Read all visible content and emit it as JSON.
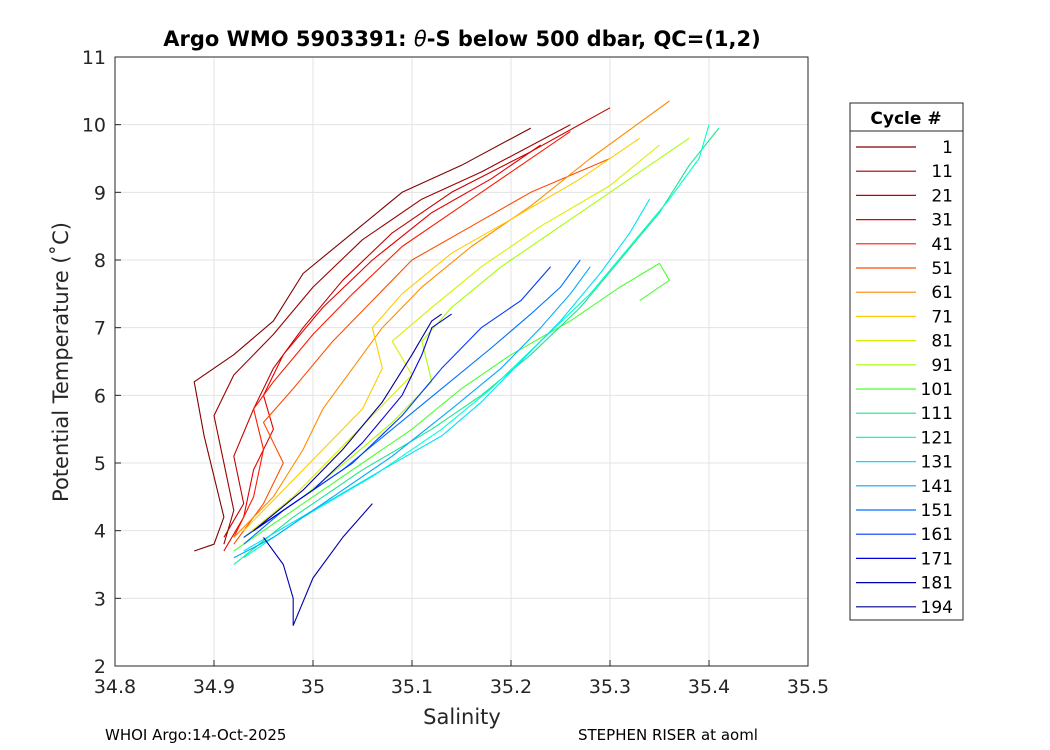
{
  "chart_data": {
    "type": "line",
    "title": "Argo WMO 5903391: θ-S below 500 dbar,  QC=(1,2)",
    "title_prefix": "Argo WMO 5903391: ",
    "title_theta": "θ",
    "title_suffix": "-S below 500 dbar,  QC=(1,2)",
    "xlabel": "Salinity",
    "ylabel": "Potential Temperature (˚C)",
    "xlim": [
      34.8,
      35.5
    ],
    "ylim": [
      2,
      11
    ],
    "xticks": [
      34.8,
      34.9,
      35.0,
      35.1,
      35.2,
      35.3,
      35.4,
      35.5
    ],
    "xtick_labels": [
      "34.8",
      "34.9",
      "35",
      "35.1",
      "35.2",
      "35.3",
      "35.4",
      "35.5"
    ],
    "yticks": [
      2,
      3,
      4,
      5,
      6,
      7,
      8,
      9,
      10,
      11
    ],
    "ytick_labels": [
      "2",
      "3",
      "4",
      "5",
      "6",
      "7",
      "8",
      "9",
      "10",
      "11"
    ],
    "grid": true,
    "legend": {
      "title": "Cycle #",
      "placement": "outside-right",
      "entries": [
        {
          "label": "1",
          "color": "#800000"
        },
        {
          "label": "11",
          "color": "#9b0000"
        },
        {
          "label": "21",
          "color": "#c10000"
        },
        {
          "label": "31",
          "color": "#e50000"
        },
        {
          "label": "41",
          "color": "#ff1a00"
        },
        {
          "label": "51",
          "color": "#ff4d00"
        },
        {
          "label": "61",
          "color": "#ff8c00"
        },
        {
          "label": "71",
          "color": "#ffcc00"
        },
        {
          "label": "81",
          "color": "#d9f000"
        },
        {
          "label": "91",
          "color": "#a6ff00"
        },
        {
          "label": "101",
          "color": "#4dff33"
        },
        {
          "label": "111",
          "color": "#1ae68c"
        },
        {
          "label": "121",
          "color": "#00ffd0"
        },
        {
          "label": "131",
          "color": "#00e0ff"
        },
        {
          "label": "141",
          "color": "#00a8ff"
        },
        {
          "label": "151",
          "color": "#0070ff"
        },
        {
          "label": "161",
          "color": "#0038ff"
        },
        {
          "label": "171",
          "color": "#0000e0"
        },
        {
          "label": "181",
          "color": "#0000b0"
        },
        {
          "label": "194",
          "color": "#000090"
        }
      ]
    },
    "series": [
      {
        "name": "1",
        "color": "#800000",
        "points": [
          [
            34.88,
            3.7
          ],
          [
            34.9,
            3.8
          ],
          [
            34.91,
            4.2
          ],
          [
            34.9,
            4.8
          ],
          [
            34.89,
            5.4
          ],
          [
            34.88,
            6.2
          ],
          [
            34.92,
            6.6
          ],
          [
            34.96,
            7.1
          ],
          [
            34.99,
            7.8
          ],
          [
            35.04,
            8.4
          ],
          [
            35.09,
            9.0
          ],
          [
            35.15,
            9.4
          ],
          [
            35.22,
            9.95
          ]
        ]
      },
      {
        "name": "11",
        "color": "#9b0000",
        "points": [
          [
            34.91,
            3.8
          ],
          [
            34.92,
            4.3
          ],
          [
            34.91,
            5.0
          ],
          [
            34.9,
            5.7
          ],
          [
            34.92,
            6.3
          ],
          [
            34.96,
            6.9
          ],
          [
            35.0,
            7.6
          ],
          [
            35.05,
            8.3
          ],
          [
            35.11,
            8.9
          ],
          [
            35.17,
            9.3
          ],
          [
            35.26,
            10.0
          ]
        ]
      },
      {
        "name": "21",
        "color": "#c10000",
        "points": [
          [
            34.91,
            3.9
          ],
          [
            34.93,
            4.4
          ],
          [
            34.92,
            5.1
          ],
          [
            34.94,
            5.8
          ],
          [
            34.96,
            6.4
          ],
          [
            34.99,
            7.0
          ],
          [
            35.03,
            7.7
          ],
          [
            35.08,
            8.4
          ],
          [
            35.14,
            9.0
          ],
          [
            35.22,
            9.6
          ],
          [
            35.3,
            10.25
          ]
        ]
      },
      {
        "name": "31",
        "color": "#e50000",
        "points": [
          [
            34.91,
            3.7
          ],
          [
            34.93,
            4.2
          ],
          [
            34.94,
            4.9
          ],
          [
            34.96,
            5.5
          ],
          [
            34.95,
            6.0
          ],
          [
            34.97,
            6.6
          ],
          [
            35.01,
            7.3
          ],
          [
            35.06,
            8.0
          ],
          [
            35.12,
            8.7
          ],
          [
            35.18,
            9.2
          ],
          [
            35.23,
            9.7
          ]
        ]
      },
      {
        "name": "41",
        "color": "#ff1a00",
        "points": [
          [
            34.92,
            3.9
          ],
          [
            34.94,
            4.5
          ],
          [
            34.95,
            5.2
          ],
          [
            34.94,
            5.8
          ],
          [
            34.96,
            6.2
          ],
          [
            35.0,
            6.9
          ],
          [
            35.04,
            7.5
          ],
          [
            35.09,
            8.2
          ],
          [
            35.15,
            8.8
          ],
          [
            35.21,
            9.4
          ],
          [
            35.26,
            9.9
          ]
        ]
      },
      {
        "name": "51",
        "color": "#ff4d00",
        "points": [
          [
            34.92,
            3.8
          ],
          [
            34.95,
            4.4
          ],
          [
            34.97,
            5.0
          ],
          [
            34.95,
            5.6
          ],
          [
            34.98,
            6.1
          ],
          [
            35.02,
            6.8
          ],
          [
            35.06,
            7.4
          ],
          [
            35.1,
            8.0
          ],
          [
            35.16,
            8.5
          ],
          [
            35.22,
            9.0
          ],
          [
            35.3,
            9.5
          ]
        ]
      },
      {
        "name": "61",
        "color": "#ff8c00",
        "points": [
          [
            34.92,
            3.9
          ],
          [
            34.96,
            4.5
          ],
          [
            34.99,
            5.2
          ],
          [
            35.01,
            5.8
          ],
          [
            35.04,
            6.4
          ],
          [
            35.07,
            7.0
          ],
          [
            35.11,
            7.6
          ],
          [
            35.16,
            8.2
          ],
          [
            35.22,
            8.8
          ],
          [
            35.28,
            9.5
          ],
          [
            35.36,
            10.35
          ]
        ]
      },
      {
        "name": "71",
        "color": "#ffcc00",
        "points": [
          [
            34.93,
            4.0
          ],
          [
            34.97,
            4.6
          ],
          [
            35.01,
            5.2
          ],
          [
            35.05,
            5.8
          ],
          [
            35.07,
            6.4
          ],
          [
            35.06,
            7.0
          ],
          [
            35.09,
            7.5
          ],
          [
            35.14,
            8.1
          ],
          [
            35.2,
            8.6
          ],
          [
            35.27,
            9.2
          ],
          [
            35.33,
            9.8
          ]
        ]
      },
      {
        "name": "81",
        "color": "#d9f000",
        "points": [
          [
            34.93,
            3.9
          ],
          [
            34.98,
            4.5
          ],
          [
            35.02,
            5.1
          ],
          [
            35.06,
            5.7
          ],
          [
            35.1,
            6.3
          ],
          [
            35.08,
            6.8
          ],
          [
            35.12,
            7.3
          ],
          [
            35.17,
            7.9
          ],
          [
            35.23,
            8.5
          ],
          [
            35.3,
            9.1
          ],
          [
            35.35,
            9.7
          ]
        ]
      },
      {
        "name": "91",
        "color": "#a6ff00",
        "points": [
          [
            34.93,
            3.9
          ],
          [
            34.99,
            4.5
          ],
          [
            35.04,
            5.1
          ],
          [
            35.08,
            5.6
          ],
          [
            35.12,
            6.2
          ],
          [
            35.11,
            6.8
          ],
          [
            35.14,
            7.3
          ],
          [
            35.19,
            7.9
          ],
          [
            35.25,
            8.5
          ],
          [
            35.32,
            9.2
          ],
          [
            35.38,
            9.8
          ]
        ]
      },
      {
        "name": "101",
        "color": "#4dff33",
        "points": [
          [
            34.92,
            3.7
          ],
          [
            34.99,
            4.4
          ],
          [
            35.05,
            5.0
          ],
          [
            35.1,
            5.5
          ],
          [
            35.15,
            6.1
          ],
          [
            35.2,
            6.6
          ],
          [
            35.26,
            7.1
          ],
          [
            35.31,
            7.6
          ],
          [
            35.35,
            7.95
          ],
          [
            35.36,
            7.7
          ],
          [
            35.33,
            7.4
          ]
        ]
      },
      {
        "name": "111",
        "color": "#1ae68c",
        "points": [
          [
            34.92,
            3.5
          ],
          [
            34.98,
            4.2
          ],
          [
            35.05,
            4.9
          ],
          [
            35.12,
            5.5
          ],
          [
            35.17,
            6.0
          ],
          [
            35.22,
            6.6
          ],
          [
            35.27,
            7.3
          ],
          [
            35.31,
            8.0
          ],
          [
            35.35,
            8.7
          ],
          [
            35.38,
            9.4
          ],
          [
            35.41,
            9.95
          ]
        ]
      },
      {
        "name": "121",
        "color": "#00ffd0",
        "points": [
          [
            34.93,
            3.6
          ],
          [
            34.99,
            4.2
          ],
          [
            35.06,
            4.8
          ],
          [
            35.13,
            5.5
          ],
          [
            35.18,
            6.1
          ],
          [
            35.23,
            6.8
          ],
          [
            35.28,
            7.5
          ],
          [
            35.32,
            8.2
          ],
          [
            35.36,
            8.9
          ],
          [
            35.39,
            9.5
          ],
          [
            35.4,
            10.0
          ]
        ]
      },
      {
        "name": "131",
        "color": "#00e0ff",
        "points": [
          [
            34.93,
            3.7
          ],
          [
            35.0,
            4.3
          ],
          [
            35.07,
            4.9
          ],
          [
            35.13,
            5.4
          ],
          [
            35.17,
            5.9
          ],
          [
            35.21,
            6.5
          ],
          [
            35.25,
            7.1
          ],
          [
            35.29,
            7.8
          ],
          [
            35.32,
            8.4
          ],
          [
            35.34,
            8.9
          ]
        ]
      },
      {
        "name": "141",
        "color": "#00a8ff",
        "points": [
          [
            34.92,
            3.6
          ],
          [
            34.96,
            3.9
          ],
          [
            35.02,
            4.5
          ],
          [
            35.08,
            5.1
          ],
          [
            35.14,
            5.8
          ],
          [
            35.19,
            6.4
          ],
          [
            35.23,
            7.0
          ],
          [
            35.26,
            7.5
          ],
          [
            35.28,
            7.9
          ]
        ]
      },
      {
        "name": "151",
        "color": "#0070ff",
        "points": [
          [
            34.93,
            3.8
          ],
          [
            34.97,
            4.3
          ],
          [
            35.03,
            4.9
          ],
          [
            35.08,
            5.5
          ],
          [
            35.13,
            6.1
          ],
          [
            35.18,
            6.7
          ],
          [
            35.22,
            7.2
          ],
          [
            35.25,
            7.6
          ],
          [
            35.27,
            8.0
          ]
        ]
      },
      {
        "name": "161",
        "color": "#0038ff",
        "points": [
          [
            34.93,
            3.9
          ],
          [
            34.98,
            4.4
          ],
          [
            35.04,
            5.0
          ],
          [
            35.09,
            5.7
          ],
          [
            35.13,
            6.4
          ],
          [
            35.17,
            7.0
          ],
          [
            35.21,
            7.4
          ],
          [
            35.24,
            7.9
          ]
        ]
      },
      {
        "name": "171",
        "color": "#0000e0",
        "points": [
          [
            34.94,
            4.0
          ],
          [
            35.0,
            4.6
          ],
          [
            35.05,
            5.3
          ],
          [
            35.09,
            6.0
          ],
          [
            35.11,
            6.6
          ],
          [
            35.12,
            7.0
          ],
          [
            35.14,
            7.2
          ]
        ]
      },
      {
        "name": "181",
        "color": "#0000b0",
        "points": [
          [
            34.95,
            3.9
          ],
          [
            34.97,
            3.5
          ],
          [
            34.98,
            3.0
          ],
          [
            34.98,
            2.6
          ],
          [
            35.0,
            3.3
          ],
          [
            35.03,
            3.9
          ],
          [
            35.06,
            4.4
          ]
        ]
      },
      {
        "name": "194",
        "color": "#000090",
        "points": [
          [
            34.94,
            4.0
          ],
          [
            34.99,
            4.6
          ],
          [
            35.03,
            5.2
          ],
          [
            35.07,
            5.9
          ],
          [
            35.1,
            6.6
          ],
          [
            35.12,
            7.1
          ],
          [
            35.13,
            7.2
          ]
        ]
      }
    ]
  },
  "footer": {
    "left": "WHOI Argo:14-Oct-2025",
    "right": "STEPHEN RISER at aoml"
  }
}
